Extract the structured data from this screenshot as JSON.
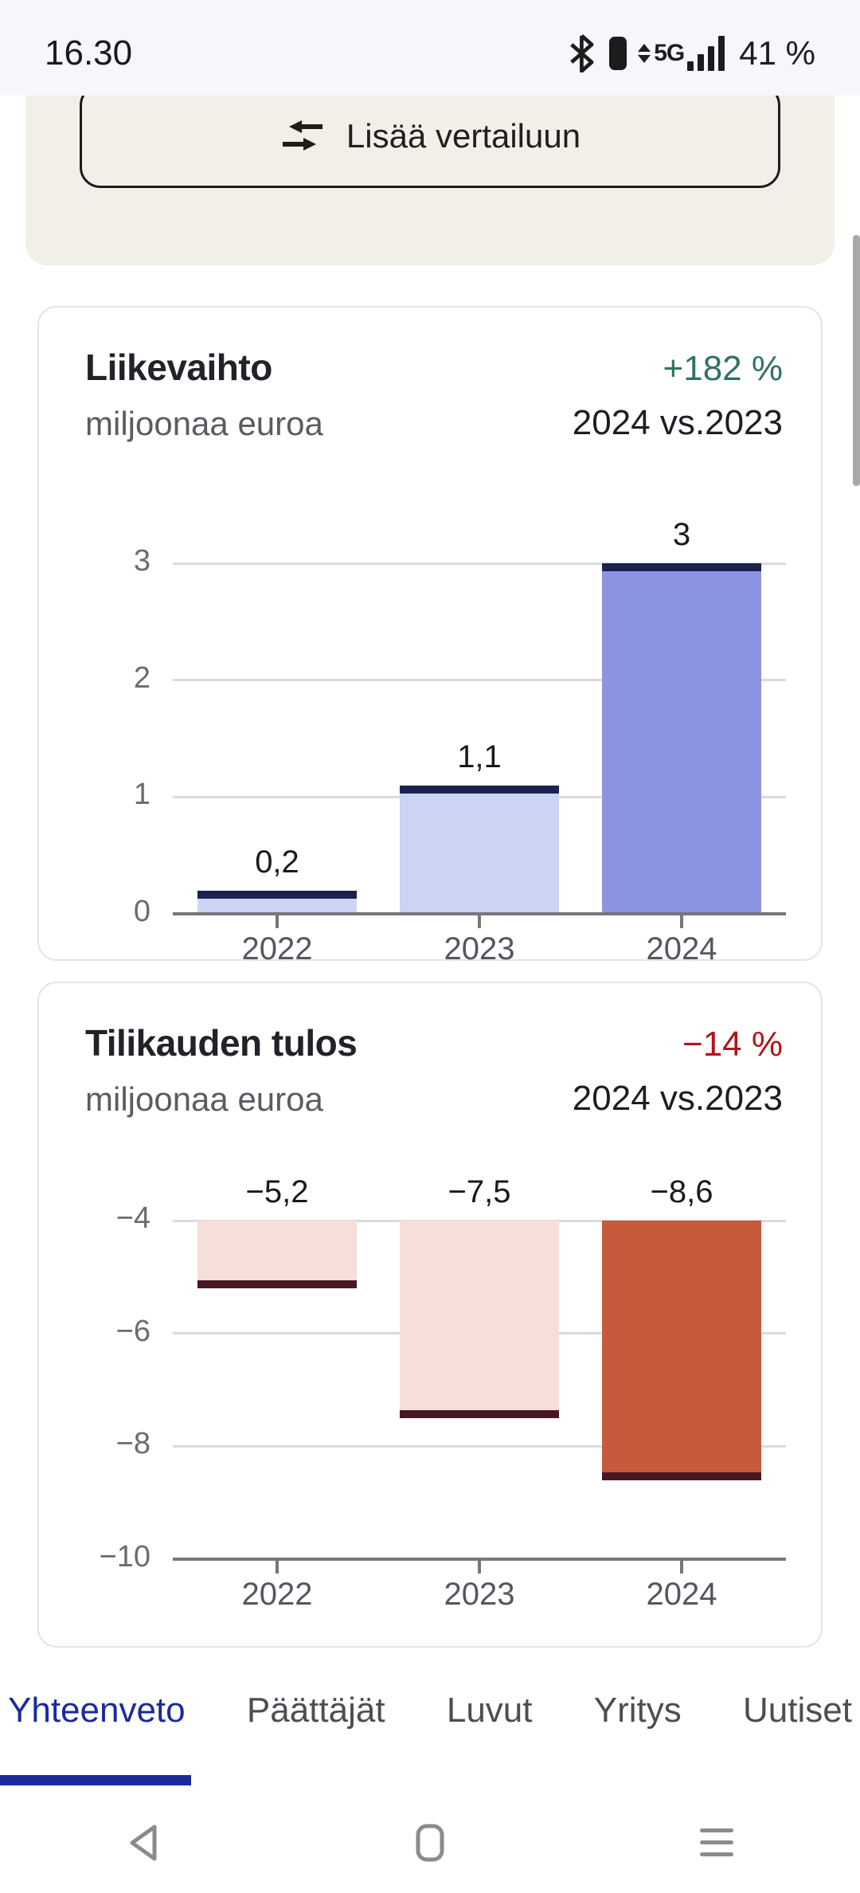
{
  "status_bar": {
    "time": "16.30",
    "network_label": "5G",
    "battery_text": "41 %"
  },
  "compare_panel": {
    "button_label": "Lisää vertailuun"
  },
  "tabs": {
    "items": [
      "Yhteenveto",
      "Päättäjät",
      "Luvut",
      "Yritys",
      "Uutiset"
    ],
    "active": "Yhteenveto",
    "active_color": "#1B2A9B"
  },
  "chart_data": [
    {
      "type": "bar",
      "title": "Liikevaihto",
      "subtitle": "miljoonaa euroa",
      "delta": "+182 %",
      "delta_color": "#2E7263",
      "comparison": "2024 vs.2023",
      "categories": [
        "2022",
        "2023",
        "2024"
      ],
      "values": [
        0.2,
        1.1,
        3
      ],
      "value_labels": [
        "0,2",
        "1,1",
        "3"
      ],
      "ylim": [
        0,
        3
      ],
      "yticks": [
        3,
        2,
        1,
        0
      ],
      "ytick_labels": [
        "3",
        "2",
        "1",
        "0"
      ],
      "grid": true,
      "bar_colors": [
        "#CBD4F3",
        "#CBD4F3",
        "#8C94E2"
      ],
      "cap_color": "#1D2150"
    },
    {
      "type": "bar",
      "title": "Tilikauden tulos",
      "subtitle": "miljoonaa euroa",
      "delta": "−14 %",
      "delta_color": "#B5121B",
      "comparison": "2024 vs.2023",
      "categories": [
        "2022",
        "2023",
        "2024"
      ],
      "values": [
        -5.2,
        -7.5,
        -8.6
      ],
      "value_labels": [
        "−5,2",
        "−7,5",
        "−8,6"
      ],
      "ylim": [
        -10,
        -4
      ],
      "yticks": [
        -4,
        -6,
        -8,
        -10
      ],
      "ytick_labels": [
        "−4",
        "−6",
        "−8",
        "−10"
      ],
      "grid": true,
      "bar_colors": [
        "#F7DED8",
        "#F7DED8",
        "#C7593D"
      ],
      "cap_color": "#471722"
    }
  ]
}
